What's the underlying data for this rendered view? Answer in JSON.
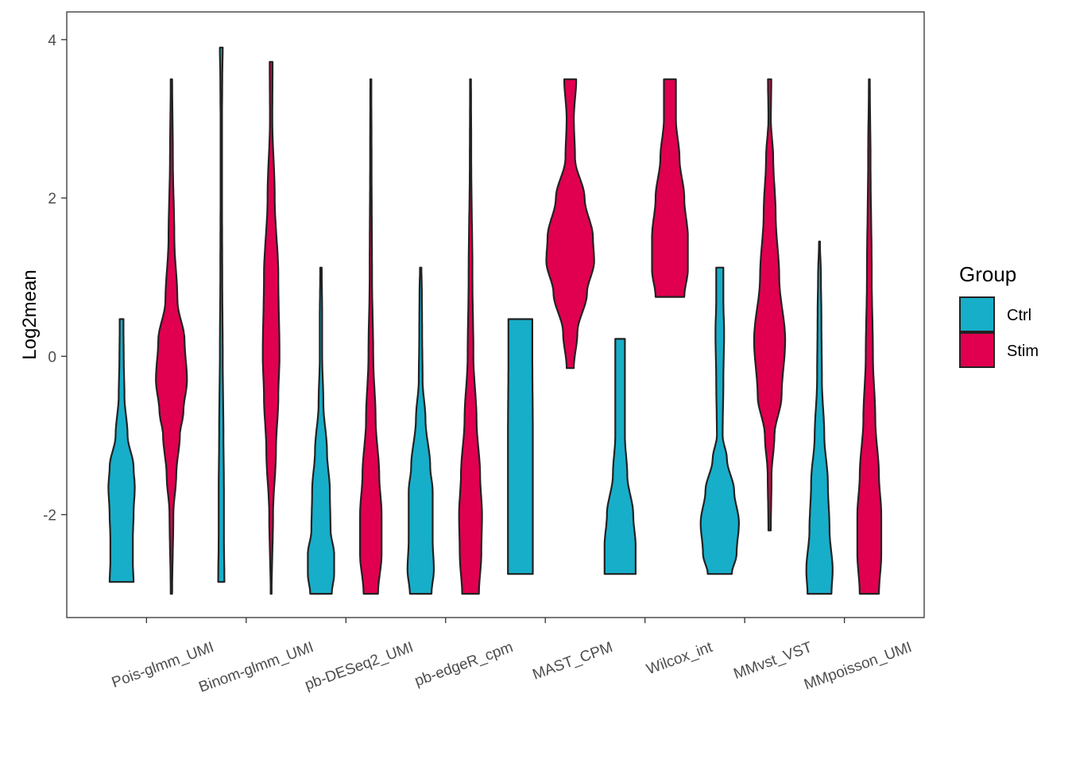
{
  "chart_data": {
    "type": "violin",
    "title": "",
    "xlabel": "",
    "ylabel": "Log2mean",
    "ylim": [
      -3.3,
      4.35
    ],
    "yticks": [
      4,
      2,
      0,
      -2
    ],
    "ytick_labels": [
      "4",
      "2",
      "0",
      "-2"
    ],
    "categories": [
      "Pois-glmm_UMI",
      "Binom-glmm_UMI",
      "pb-DESeq2_UMI",
      "pb-edgeR_cpm",
      "MAST_CPM",
      "Wilcox_int",
      "MMvst_VST",
      "MMpoisson_UMI"
    ],
    "legend": {
      "title": "Group",
      "position": "right",
      "items": [
        {
          "label": "Ctrl",
          "color": "#17aec9"
        },
        {
          "label": "Stim",
          "color": "#e0004f"
        }
      ]
    },
    "series": [
      {
        "name": "Ctrl",
        "color": "#17aec9",
        "violins": [
          {
            "category": "Pois-glmm_UMI",
            "min": -2.85,
            "max": 0.47,
            "profile": [
              [
                0.47,
                0.08
              ],
              [
                0.3,
                0.08
              ],
              [
                0.0,
                0.09
              ],
              [
                -0.5,
                0.12
              ],
              [
                -1.0,
                0.25
              ],
              [
                -1.4,
                0.5
              ],
              [
                -1.65,
                0.55
              ],
              [
                -2.0,
                0.5
              ],
              [
                -2.3,
                0.47
              ],
              [
                -2.6,
                0.47
              ],
              [
                -2.85,
                0.5
              ]
            ]
          },
          {
            "category": "Binom-glmm_UMI",
            "min": -2.85,
            "max": 3.9,
            "profile": [
              [
                3.9,
                0.06
              ],
              [
                3.5,
                0.04
              ],
              [
                3.0,
                0.03
              ],
              [
                2.5,
                0.03
              ],
              [
                2.0,
                0.03
              ],
              [
                1.0,
                0.04
              ],
              [
                0.0,
                0.06
              ],
              [
                -1.0,
                0.09
              ],
              [
                -1.7,
                0.11
              ],
              [
                -2.3,
                0.11
              ],
              [
                -2.85,
                0.13
              ]
            ]
          },
          {
            "category": "pb-DESeq2_UMI",
            "min": -3.0,
            "max": 1.12,
            "profile": [
              [
                1.12,
                0.03
              ],
              [
                0.5,
                0.05
              ],
              [
                0.0,
                0.05
              ],
              [
                -0.6,
                0.1
              ],
              [
                -1.2,
                0.25
              ],
              [
                -1.7,
                0.37
              ],
              [
                -2.2,
                0.4
              ],
              [
                -2.5,
                0.55
              ],
              [
                -2.75,
                0.55
              ],
              [
                -3.0,
                0.45
              ]
            ]
          },
          {
            "category": "pb-edgeR_cpm",
            "min": -3.0,
            "max": 1.12,
            "profile": [
              [
                1.12,
                0.03
              ],
              [
                0.8,
                0.05
              ],
              [
                0.3,
                0.06
              ],
              [
                -0.3,
                0.08
              ],
              [
                -0.8,
                0.2
              ],
              [
                -1.4,
                0.4
              ],
              [
                -1.7,
                0.5
              ],
              [
                -2.0,
                0.5
              ],
              [
                -2.3,
                0.5
              ],
              [
                -2.7,
                0.55
              ],
              [
                -3.0,
                0.45
              ]
            ]
          },
          {
            "category": "MAST_CPM",
            "min": -2.75,
            "max": 0.47,
            "profile": [
              [
                0.47,
                0.5
              ],
              [
                0.0,
                0.5
              ],
              [
                -1.0,
                0.52
              ],
              [
                -2.0,
                0.52
              ],
              [
                -2.75,
                0.52
              ]
            ]
          },
          {
            "category": "Wilcox_int",
            "min": -2.75,
            "max": 0.22,
            "profile": [
              [
                0.22,
                0.2
              ],
              [
                -0.5,
                0.2
              ],
              [
                -1.0,
                0.2
              ],
              [
                -1.5,
                0.3
              ],
              [
                -2.0,
                0.55
              ],
              [
                -2.4,
                0.65
              ],
              [
                -2.75,
                0.65
              ]
            ]
          },
          {
            "category": "MMvst_VST",
            "min": -2.75,
            "max": 1.12,
            "profile": [
              [
                1.12,
                0.15
              ],
              [
                0.7,
                0.15
              ],
              [
                0.3,
                0.18
              ],
              [
                -0.3,
                0.15
              ],
              [
                -1.0,
                0.12
              ],
              [
                -1.3,
                0.3
              ],
              [
                -1.7,
                0.6
              ],
              [
                -2.1,
                0.8
              ],
              [
                -2.5,
                0.7
              ],
              [
                -2.75,
                0.5
              ]
            ]
          },
          {
            "category": "MMpoisson_UMI",
            "min": -3.0,
            "max": 1.45,
            "profile": [
              [
                1.45,
                0.02
              ],
              [
                1.0,
                0.06
              ],
              [
                0.5,
                0.08
              ],
              [
                -0.3,
                0.1
              ],
              [
                -1.0,
                0.2
              ],
              [
                -1.6,
                0.35
              ],
              [
                -2.2,
                0.42
              ],
              [
                -2.7,
                0.55
              ],
              [
                -3.0,
                0.5
              ]
            ]
          }
        ]
      },
      {
        "name": "Stim",
        "color": "#e0004f",
        "violins": [
          {
            "category": "Pois-glmm_UMI",
            "min": -3.0,
            "max": 3.5,
            "profile": [
              [
                3.5,
                0.03
              ],
              [
                2.5,
                0.06
              ],
              [
                1.5,
                0.12
              ],
              [
                0.7,
                0.25
              ],
              [
                0.2,
                0.55
              ],
              [
                -0.3,
                0.65
              ],
              [
                -0.7,
                0.5
              ],
              [
                -1.0,
                0.35
              ],
              [
                -1.5,
                0.2
              ],
              [
                -2.0,
                0.08
              ],
              [
                -3.0,
                0.03
              ]
            ]
          },
          {
            "category": "Binom-glmm_UMI",
            "min": -3.0,
            "max": 3.72,
            "profile": [
              [
                3.72,
                0.06
              ],
              [
                3.0,
                0.05
              ],
              [
                2.0,
                0.15
              ],
              [
                1.0,
                0.3
              ],
              [
                0.0,
                0.35
              ],
              [
                -0.5,
                0.3
              ],
              [
                -1.2,
                0.2
              ],
              [
                -2.0,
                0.08
              ],
              [
                -3.0,
                0.02
              ]
            ]
          },
          {
            "category": "pb-DESeq2_UMI",
            "min": -3.0,
            "max": 3.5,
            "profile": [
              [
                3.5,
                0.02
              ],
              [
                2.5,
                0.03
              ],
              [
                1.0,
                0.05
              ],
              [
                0.0,
                0.1
              ],
              [
                -0.8,
                0.2
              ],
              [
                -1.5,
                0.35
              ],
              [
                -2.0,
                0.45
              ],
              [
                -2.5,
                0.45
              ],
              [
                -3.0,
                0.3
              ]
            ]
          },
          {
            "category": "pb-edgeR_cpm",
            "min": -3.0,
            "max": 3.5,
            "profile": [
              [
                3.5,
                0.02
              ],
              [
                2.5,
                0.03
              ],
              [
                1.0,
                0.08
              ],
              [
                0.0,
                0.12
              ],
              [
                -0.8,
                0.25
              ],
              [
                -1.5,
                0.4
              ],
              [
                -2.0,
                0.48
              ],
              [
                -2.5,
                0.45
              ],
              [
                -3.0,
                0.35
              ]
            ]
          },
          {
            "category": "MAST_CPM",
            "min": -0.15,
            "max": 3.5,
            "profile": [
              [
                3.5,
                0.25
              ],
              [
                3.0,
                0.15
              ],
              [
                2.5,
                0.2
              ],
              [
                2.0,
                0.6
              ],
              [
                1.5,
                0.95
              ],
              [
                1.2,
                1.0
              ],
              [
                0.8,
                0.7
              ],
              [
                0.3,
                0.3
              ],
              [
                -0.15,
                0.15
              ]
            ]
          },
          {
            "category": "Wilcox_int",
            "min": 0.75,
            "max": 3.5,
            "profile": [
              [
                3.5,
                0.25
              ],
              [
                3.0,
                0.25
              ],
              [
                2.5,
                0.4
              ],
              [
                2.0,
                0.6
              ],
              [
                1.5,
                0.75
              ],
              [
                1.1,
                0.75
              ],
              [
                0.75,
                0.6
              ]
            ]
          },
          {
            "category": "MMvst_VST",
            "min": -2.2,
            "max": 3.5,
            "profile": [
              [
                3.5,
                0.07
              ],
              [
                3.0,
                0.05
              ],
              [
                2.5,
                0.15
              ],
              [
                1.8,
                0.25
              ],
              [
                1.0,
                0.4
              ],
              [
                0.2,
                0.65
              ],
              [
                -0.5,
                0.5
              ],
              [
                -1.0,
                0.2
              ],
              [
                -1.5,
                0.08
              ],
              [
                -2.2,
                0.05
              ]
            ]
          },
          {
            "category": "MMpoisson_UMI",
            "min": -3.0,
            "max": 3.5,
            "profile": [
              [
                3.5,
                0.02
              ],
              [
                2.5,
                0.05
              ],
              [
                1.0,
                0.1
              ],
              [
                0.0,
                0.15
              ],
              [
                -0.8,
                0.25
              ],
              [
                -1.5,
                0.4
              ],
              [
                -2.0,
                0.5
              ],
              [
                -2.5,
                0.5
              ],
              [
                -3.0,
                0.4
              ]
            ]
          }
        ]
      }
    ]
  }
}
